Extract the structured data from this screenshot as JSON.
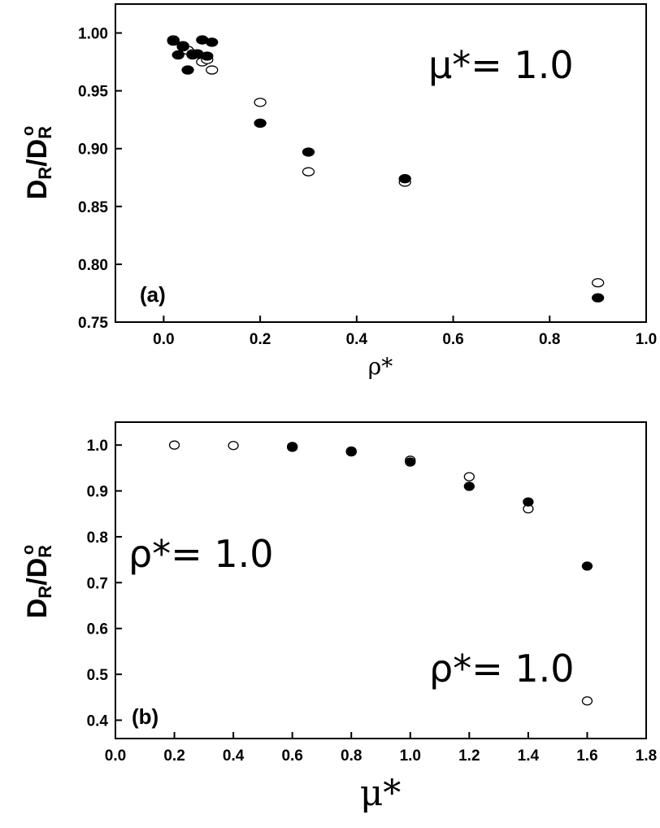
{
  "chart_data": [
    {
      "type": "scatter",
      "panel_label": "(a)",
      "annotation": "μ*= 1.0",
      "xlabel": "ρ*",
      "ylabel": "D_R/D_R^0",
      "xlim": [
        -0.1,
        1.0
      ],
      "ylim": [
        0.75,
        1.025
      ],
      "xticks": [
        0.0,
        0.2,
        0.4,
        0.6,
        0.8,
        1.0
      ],
      "xtick_labels": [
        "0.0",
        "0.2",
        "0.4",
        "0.6",
        "0.8",
        "1.0"
      ],
      "yticks": [
        0.75,
        0.8,
        0.85,
        0.9,
        0.95,
        1.0
      ],
      "ytick_labels": [
        "0.75",
        "0.80",
        "0.85",
        "0.90",
        "0.95",
        "1.00"
      ],
      "grid": false,
      "series": [
        {
          "marker": "filled-circle",
          "points": [
            [
              0.02,
              0.993
            ],
            [
              0.03,
              0.981
            ],
            [
              0.04,
              0.988
            ],
            [
              0.05,
              0.968
            ],
            [
              0.06,
              0.981
            ],
            [
              0.07,
              0.982
            ],
            [
              0.08,
              0.994
            ],
            [
              0.09,
              0.98
            ],
            [
              0.1,
              0.992
            ],
            [
              0.2,
              0.922
            ],
            [
              0.3,
              0.897
            ],
            [
              0.5,
              0.874
            ],
            [
              0.9,
              0.771
            ]
          ]
        },
        {
          "marker": "open-circle",
          "points": [
            [
              0.02,
              0.994
            ],
            [
              0.04,
              0.989
            ],
            [
              0.05,
              0.985
            ],
            [
              0.06,
              0.982
            ],
            [
              0.08,
              0.975
            ],
            [
              0.09,
              0.977
            ],
            [
              0.1,
              0.968
            ],
            [
              0.2,
              0.94
            ],
            [
              0.3,
              0.88
            ],
            [
              0.5,
              0.871
            ],
            [
              0.9,
              0.784
            ]
          ]
        }
      ]
    },
    {
      "type": "scatter",
      "panel_label": "(b)",
      "annotations": [
        "ρ*= 1.0",
        "ρ*= 1.0"
      ],
      "xlabel": "μ*",
      "ylabel": "D_R/D_R^0",
      "xlim": [
        0.0,
        1.8
      ],
      "ylim": [
        0.36,
        1.05
      ],
      "xticks": [
        0.0,
        0.2,
        0.4,
        0.6,
        0.8,
        1.0,
        1.2,
        1.4,
        1.6,
        1.8
      ],
      "xtick_labels": [
        "0.0",
        "0.2",
        "0.4",
        "0.6",
        "0.8",
        "1.0",
        "1.2",
        "1.4",
        "1.6",
        "1.8"
      ],
      "yticks": [
        0.4,
        0.5,
        0.6,
        0.7,
        0.8,
        0.9,
        1.0
      ],
      "ytick_labels": [
        "0.4",
        "0.5",
        "0.6",
        "0.7",
        "0.8",
        "0.9",
        "1.0"
      ],
      "grid": false,
      "series": [
        {
          "marker": "filled-circle",
          "points": [
            [
              0.6,
              0.997
            ],
            [
              0.8,
              0.985
            ],
            [
              1.0,
              0.963
            ],
            [
              1.2,
              0.91
            ],
            [
              1.4,
              0.876
            ],
            [
              1.6,
              0.736
            ]
          ]
        },
        {
          "marker": "open-circle",
          "points": [
            [
              0.2,
              1.0
            ],
            [
              0.4,
              0.999
            ],
            [
              0.6,
              0.995
            ],
            [
              0.8,
              0.987
            ],
            [
              1.0,
              0.967
            ],
            [
              1.2,
              0.931
            ],
            [
              1.4,
              0.861
            ],
            [
              1.6,
              0.442
            ]
          ]
        }
      ]
    }
  ]
}
